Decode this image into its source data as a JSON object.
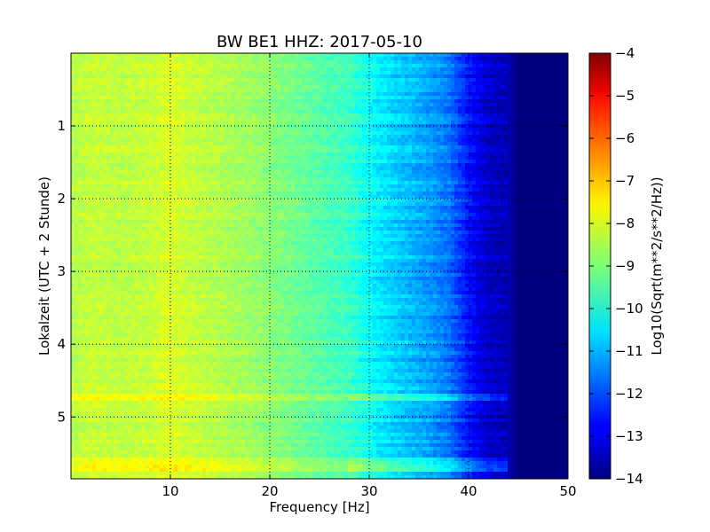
{
  "chart_data": {
    "type": "heatmap",
    "title": "BW BE1 HHZ: 2017-05-10",
    "xlabel": "Frequency [Hz]",
    "ylabel": "Lokalzeit (UTC + 2 Stunde)",
    "xlim": [
      0,
      50
    ],
    "ylim": [
      0,
      5.85
    ],
    "y_inverted": true,
    "x_ticks": [
      10,
      20,
      30,
      40,
      50
    ],
    "x_tick_labels": [
      "10",
      "20",
      "30",
      "40",
      "50"
    ],
    "y_ticks": [
      1,
      2,
      3,
      4,
      5
    ],
    "y_tick_labels": [
      "1",
      "2",
      "3",
      "4",
      "5"
    ],
    "grid": true,
    "colormap": "jet",
    "colorbar": {
      "label": "Log10(Sqrt(m**2/s**2/Hz))",
      "min": -14,
      "max": -4,
      "ticks": [
        -4,
        -5,
        -6,
        -7,
        -8,
        -9,
        -10,
        -11,
        -12,
        -13,
        -14
      ],
      "tick_labels": [
        "−4",
        "−5",
        "−6",
        "−7",
        "−8",
        "−9",
        "−10",
        "−11",
        "−12",
        "−13",
        "−14"
      ]
    },
    "frequency_profile": {
      "frequencies": [
        0,
        2,
        5,
        8,
        10,
        12,
        15,
        18,
        20,
        22,
        25,
        28,
        30,
        32,
        34,
        36,
        38,
        40,
        42,
        44,
        45,
        47,
        50
      ],
      "log_amplitude": [
        -8.5,
        -8.3,
        -8.4,
        -8.3,
        -8.1,
        -8.3,
        -8.5,
        -8.7,
        -8.9,
        -9.1,
        -9.4,
        -9.7,
        -10.2,
        -10.6,
        -10.9,
        -11.2,
        -11.6,
        -12.6,
        -13.3,
        -13.5,
        -14,
        -14,
        -14
      ]
    },
    "notable_rows": [
      {
        "time": 4.72,
        "note": "band"
      },
      {
        "time": 5.6,
        "note": "band"
      },
      {
        "time": 5.7,
        "note": "band"
      }
    ]
  }
}
